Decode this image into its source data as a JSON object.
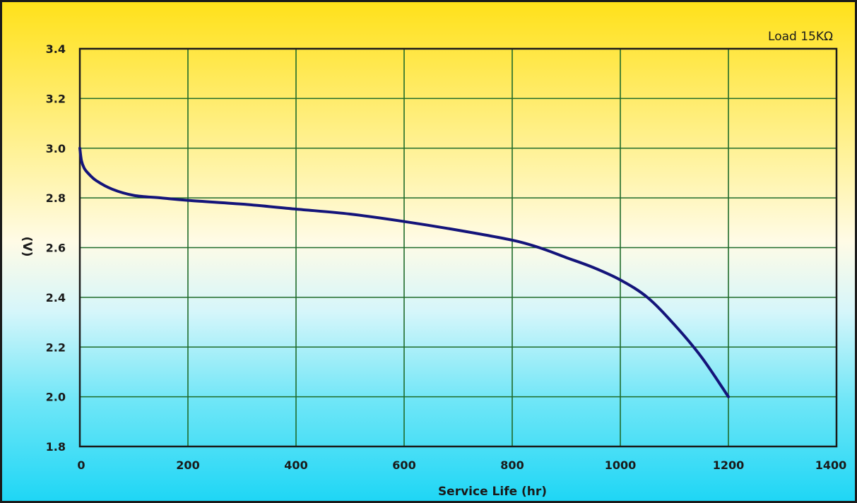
{
  "chart_data": {
    "type": "line",
    "title": "",
    "annotation": "Load 15KΩ",
    "xlabel": "Service Life (hr)",
    "ylabel": "(V)",
    "xlim": [
      0,
      1400
    ],
    "ylim": [
      1.8,
      3.4
    ],
    "x_ticks": [
      "0",
      "200",
      "400",
      "600",
      "800",
      "1000",
      "1200",
      "1400"
    ],
    "y_ticks": [
      "1.8",
      "2.0",
      "2.2",
      "2.4",
      "2.6",
      "2.8",
      "3.0",
      "3.2",
      "3.4"
    ],
    "grid": true,
    "series": [
      {
        "color": "#14147a",
        "x": [
          0,
          3,
          8,
          15,
          30,
          60,
          100,
          150,
          200,
          300,
          400,
          500,
          600,
          700,
          800,
          850,
          900,
          950,
          1000,
          1050,
          1100,
          1150,
          1200
        ],
        "y": [
          3.0,
          2.95,
          2.92,
          2.9,
          2.87,
          2.835,
          2.81,
          2.8,
          2.79,
          2.775,
          2.755,
          2.735,
          2.705,
          2.67,
          2.63,
          2.6,
          2.56,
          2.52,
          2.47,
          2.4,
          2.29,
          2.16,
          2.0
        ]
      }
    ]
  },
  "colors": {
    "grid": "#1f6b2a",
    "line": "#14147a",
    "axis": "#1a1a1a"
  }
}
